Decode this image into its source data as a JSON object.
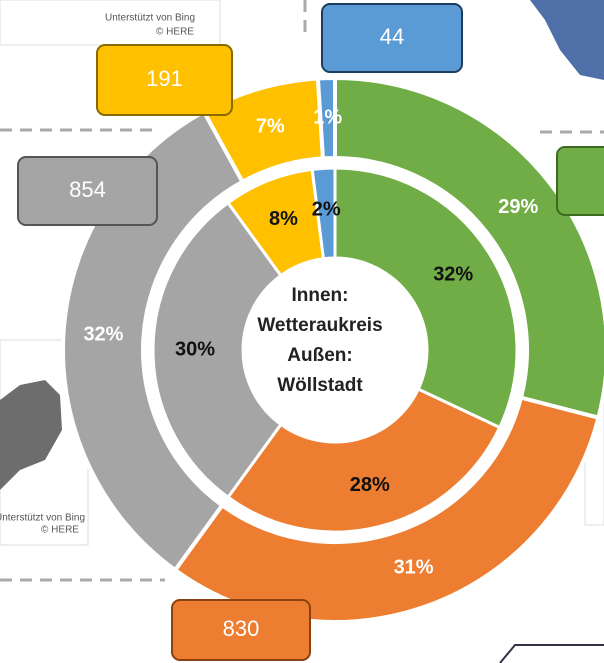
{
  "chart_data": {
    "type": "donut",
    "center_text": [
      "Innen:",
      "Wetteraukreis",
      "Außen:",
      "Wöllstadt"
    ],
    "map_credits": [
      "Unterstützt von Bing",
      "© HERE",
      "Unterstützt von Bing",
      "© HERE"
    ],
    "colors": [
      "#70ad47",
      "#ed7d31",
      "#a5a5a5",
      "#ffc000",
      "#5b9bd5"
    ],
    "series": [
      {
        "name": "Wetteraukreis",
        "values": [
          32,
          28,
          30,
          8,
          2
        ],
        "value_labels": [
          "32%",
          "28%",
          "30%",
          "8%",
          "2%"
        ]
      },
      {
        "name": "Wöllstadt",
        "values": [
          29,
          31,
          32,
          7,
          1
        ],
        "value_labels": [
          "29%",
          "31%",
          "32%",
          "7%",
          "1%"
        ],
        "counts": [
          null,
          830,
          854,
          191,
          44
        ]
      }
    ]
  }
}
